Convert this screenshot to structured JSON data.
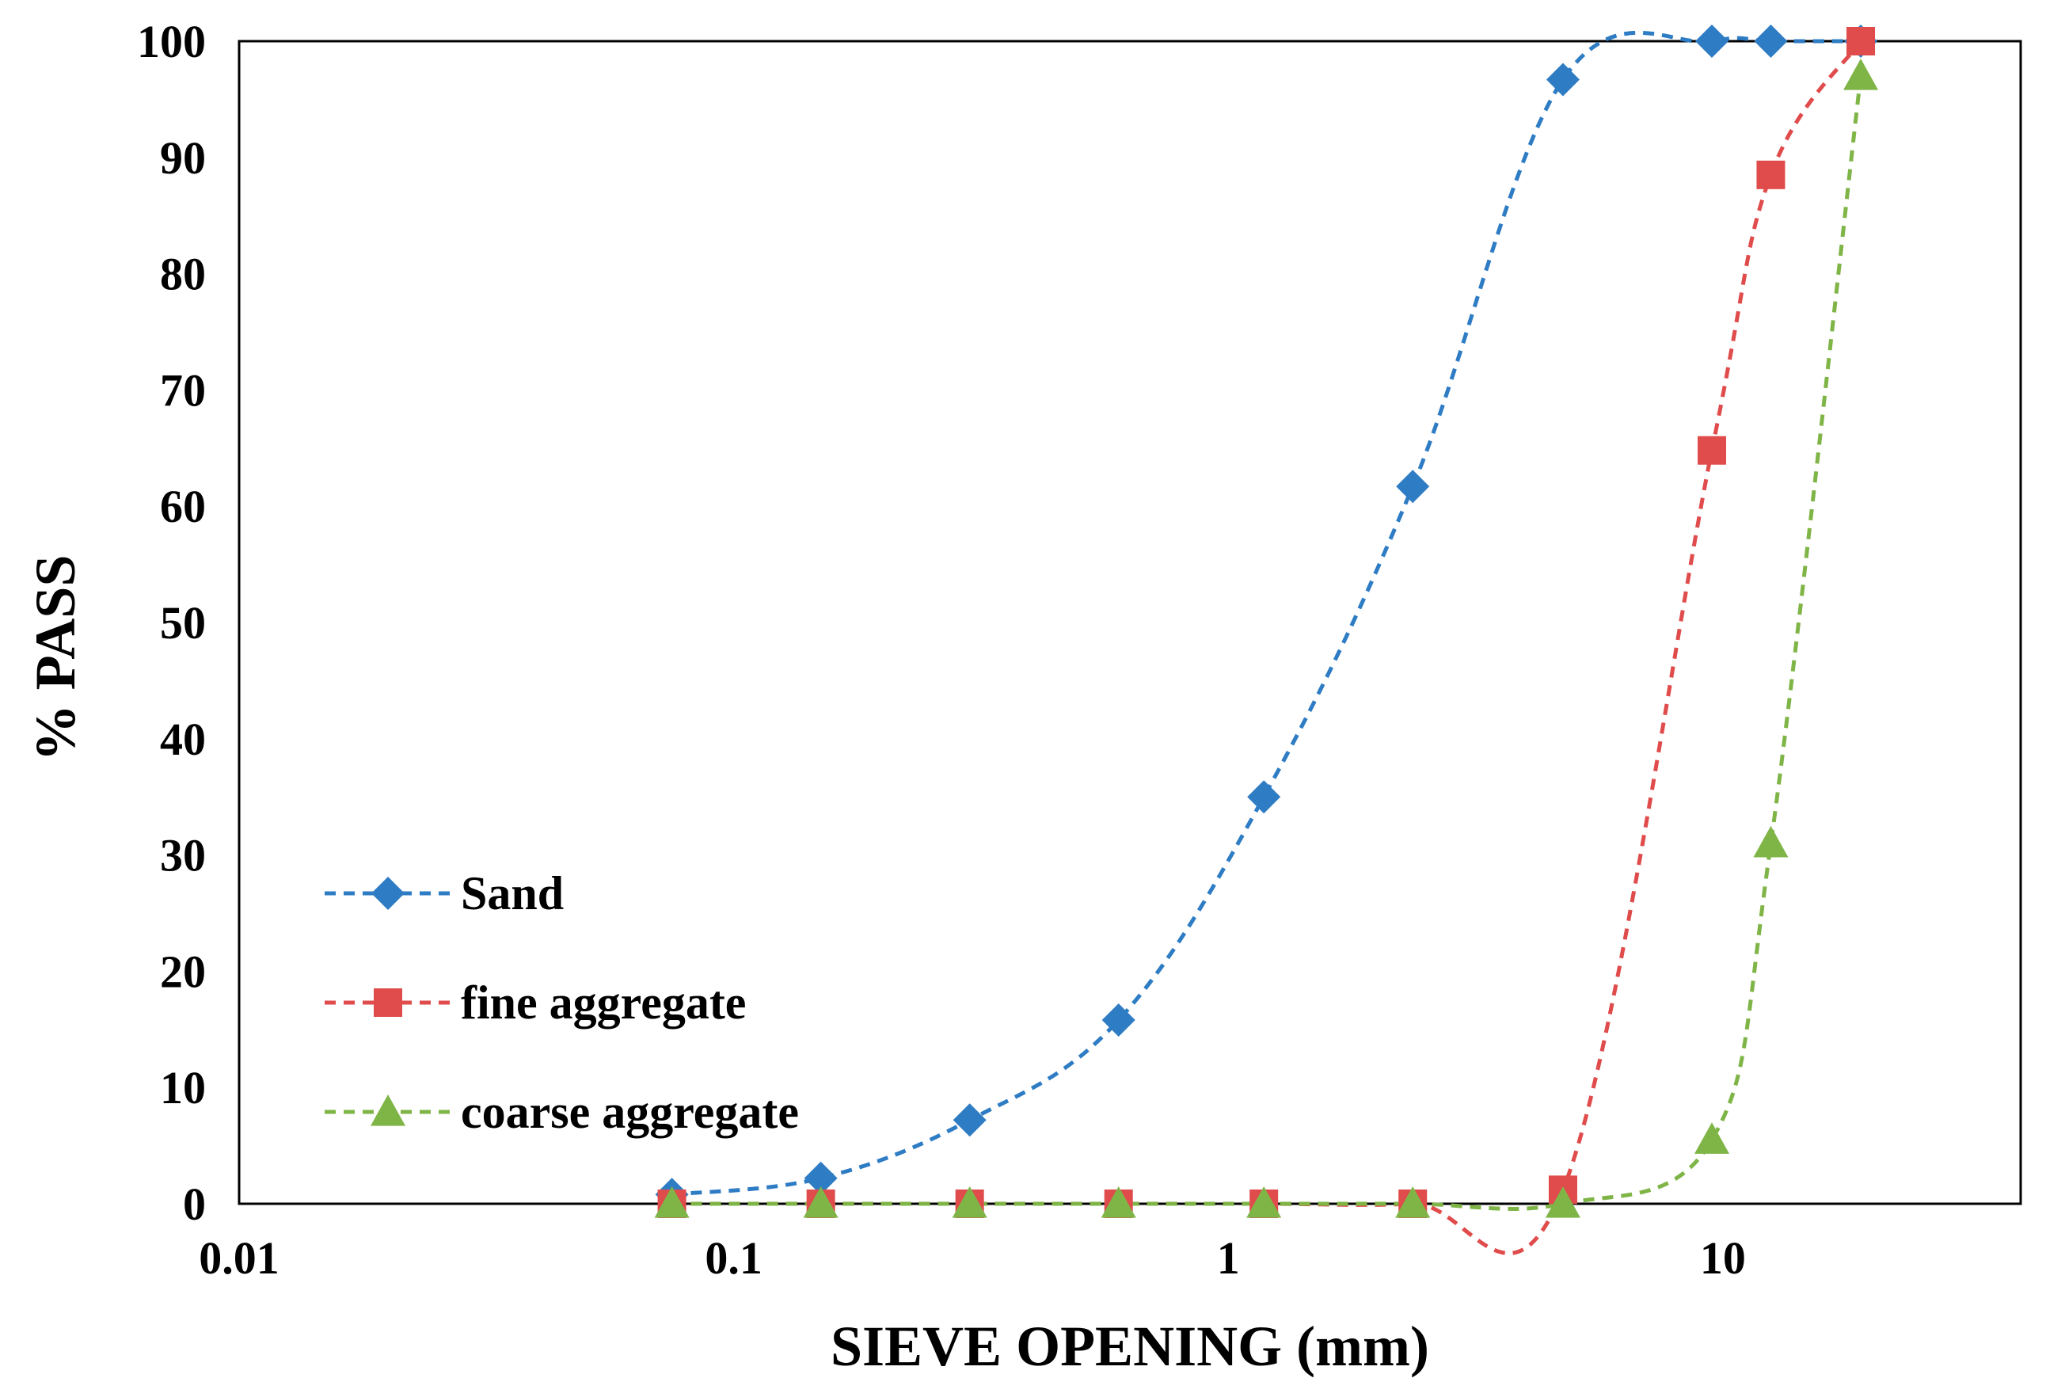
{
  "chart_data": {
    "type": "line",
    "xlabel": "SIEVE OPENING (mm)",
    "ylabel": "% PASS",
    "x_scale": "log",
    "xlim": [
      0.01,
      40
    ],
    "ylim": [
      0,
      100
    ],
    "x_ticks": [
      0.01,
      0.1,
      1,
      10
    ],
    "x_tick_labels": [
      "0.01",
      "0.1",
      "1",
      "10"
    ],
    "y_ticks": [
      0,
      10,
      20,
      30,
      40,
      50,
      60,
      70,
      80,
      90,
      100
    ],
    "y_tick_labels": [
      "0",
      "10",
      "20",
      "30",
      "40",
      "50",
      "60",
      "70",
      "80",
      "90",
      "100"
    ],
    "grid": false,
    "legend_position": "lower-left",
    "series": [
      {
        "name": "Sand",
        "color": "#2E7CC4",
        "marker": "diamond",
        "line_style": "dashed-smooth",
        "x": [
          0.075,
          0.15,
          0.3,
          0.6,
          1.18,
          2.36,
          4.75,
          9.5,
          12.5,
          19
        ],
        "y": [
          0.8,
          2.2,
          7.2,
          15.8,
          35,
          61.7,
          96.7,
          100,
          100,
          100
        ]
      },
      {
        "name": "fine aggregate",
        "color": "#E04B4B",
        "marker": "square",
        "line_style": "dashed-smooth",
        "x": [
          0.075,
          0.15,
          0.3,
          0.6,
          1.18,
          2.36,
          4.75,
          9.5,
          12.5,
          19
        ],
        "y": [
          0,
          0,
          0,
          0,
          0,
          0,
          1.2,
          64.8,
          88.5,
          100
        ]
      },
      {
        "name": "coarse aggregate",
        "color": "#7FB547",
        "marker": "triangle",
        "line_style": "dashed-smooth",
        "x": [
          0.075,
          0.15,
          0.3,
          0.6,
          1.18,
          2.36,
          4.75,
          9.5,
          12.5,
          19
        ],
        "y": [
          0,
          0,
          0,
          0,
          0,
          0,
          0,
          5.5,
          31,
          97
        ]
      }
    ]
  }
}
